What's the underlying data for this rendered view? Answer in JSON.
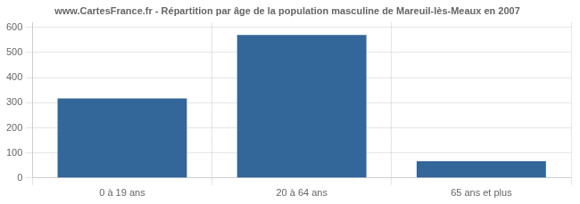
{
  "chart_data": {
    "type": "bar",
    "title": "www.CartesFrance.fr - Répartition par âge de la population masculine de Mareuil-lès-Meaux en 2007",
    "categories": [
      "0 à 19 ans",
      "20 à 64 ans",
      "65 ans et plus"
    ],
    "values": [
      317,
      570,
      67
    ],
    "color": "#336699",
    "ylim": [
      0,
      620
    ],
    "yticks": [
      0,
      100,
      200,
      300,
      400,
      500,
      600
    ],
    "grid": true
  }
}
